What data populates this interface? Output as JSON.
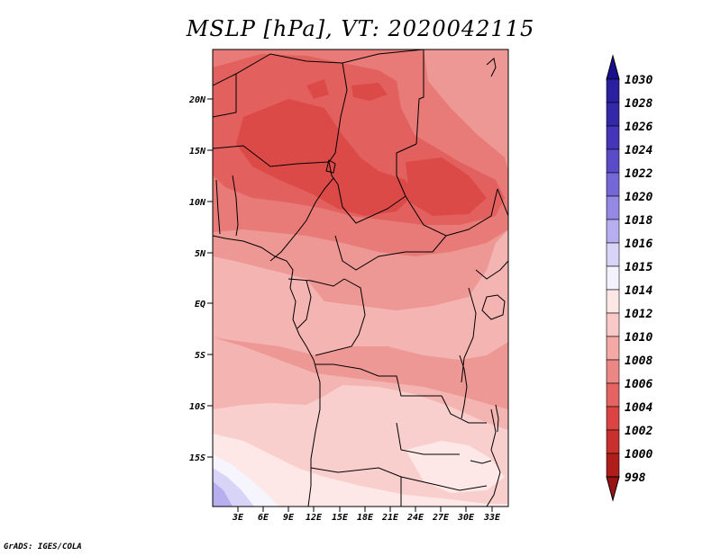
{
  "title": "MSLP [hPa], VT: 2020042115",
  "footer": "GrADS: IGES/COLA",
  "y_axis_labels": [
    "20N",
    "15N",
    "10N",
    "5N",
    "EQ",
    "5S",
    "10S",
    "15S"
  ],
  "x_axis_labels": [
    "3E",
    "6E",
    "9E",
    "12E",
    "15E",
    "18E",
    "21E",
    "24E",
    "27E",
    "30E",
    "33E"
  ],
  "colorbar": {
    "levels": [
      "1030",
      "1028",
      "1026",
      "1024",
      "1022",
      "1020",
      "1018",
      "1016",
      "1015",
      "1014",
      "1012",
      "1010",
      "1008",
      "1006",
      "1004",
      "1002",
      "1000",
      "998"
    ],
    "colors": [
      "#1a0f8c",
      "#2a1f9e",
      "#3528a8",
      "#4535b8",
      "#5a4cc8",
      "#7467d8",
      "#9488e4",
      "#b6aeee",
      "#d8d4f7",
      "#f4f2fc",
      "#fde6e6",
      "#f9c9c8",
      "#f4a9a6",
      "#eb8785",
      "#e36462",
      "#da4442",
      "#c8302e",
      "#b01e1c",
      "#981414"
    ]
  },
  "map_colors": {
    "c1002": "#dc4a48",
    "c1004": "#e2615f",
    "c1006": "#e87a78",
    "c1008": "#ee9895",
    "c1010": "#f4b4b1",
    "c1012": "#f9cfcd",
    "c1014": "#fde8e7",
    "c1015": "#f6f4fc",
    "c1016": "#d8d4f7",
    "c1018": "#b6aeee"
  }
}
